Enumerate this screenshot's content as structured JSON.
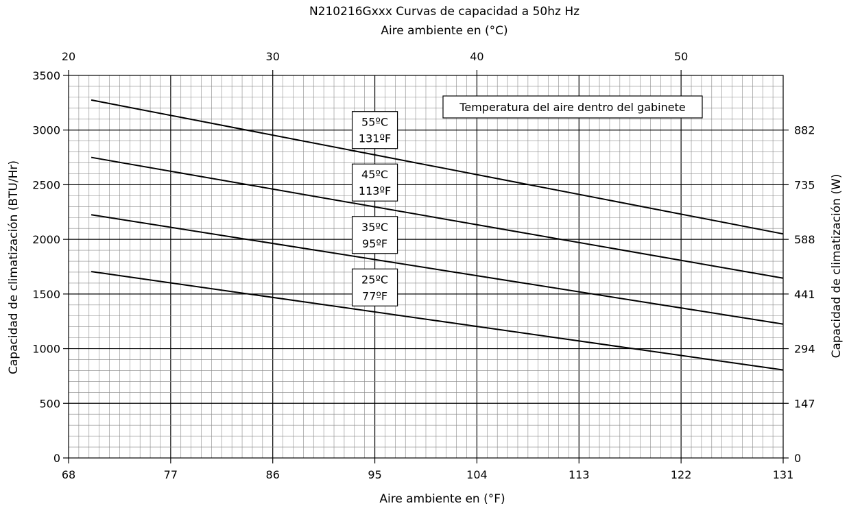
{
  "chart_data": {
    "type": "line",
    "title": "N210216Gxxx Curvas de capacidad a 50hz Hz",
    "top_axis_label": "Aire ambiente en (°C)",
    "xlabel": "Aire ambiente en  (°F)",
    "ylabel": "Capacidad de climatización (BTU/Hr)",
    "y2label": "Capacidad de climatización  (W)",
    "xlim": [
      68,
      131
    ],
    "ylim": [
      0,
      3500
    ],
    "x_ticks": [
      "68",
      "77",
      "86",
      "95",
      "104",
      "113",
      "122",
      "131"
    ],
    "x_tick_values": [
      68,
      77,
      86,
      95,
      104,
      113,
      122,
      131
    ],
    "top_ticks": [
      "20",
      "30",
      "40",
      "50"
    ],
    "top_tick_values_c": [
      20,
      30,
      40,
      50
    ],
    "y_ticks": [
      "0",
      "500",
      "1000",
      "1500",
      "2000",
      "2500",
      "3000",
      "3500"
    ],
    "y_tick_values": [
      0,
      500,
      1000,
      1500,
      2000,
      2500,
      3000,
      3500
    ],
    "y2_ticks": [
      "0",
      "147",
      "294",
      "441",
      "588",
      "735",
      "882"
    ],
    "y2_tick_values_btu": [
      0,
      500,
      1000,
      1500,
      2000,
      2500,
      3000
    ],
    "grid": true,
    "legend_box": "Temperatura del aire dentro del gabinete",
    "series": [
      {
        "label_c": "55ºC",
        "label_f": "131ºF",
        "x": [
          70,
          131
        ],
        "y": [
          3275,
          2050
        ],
        "label_x": 95,
        "label_y": 3000
      },
      {
        "label_c": "45ºC",
        "label_f": "113ºF",
        "x": [
          70,
          131
        ],
        "y": [
          2750,
          1645
        ],
        "label_x": 95,
        "label_y": 2520
      },
      {
        "label_c": "35ºC",
        "label_f": "95ºF",
        "x": [
          70,
          131
        ],
        "y": [
          2225,
          1225
        ],
        "label_x": 95,
        "label_y": 2040
      },
      {
        "label_c": "25ºC",
        "label_f": "77ºF",
        "x": [
          70,
          131
        ],
        "y": [
          1705,
          805
        ],
        "label_x": 95,
        "label_y": 1560
      }
    ]
  }
}
